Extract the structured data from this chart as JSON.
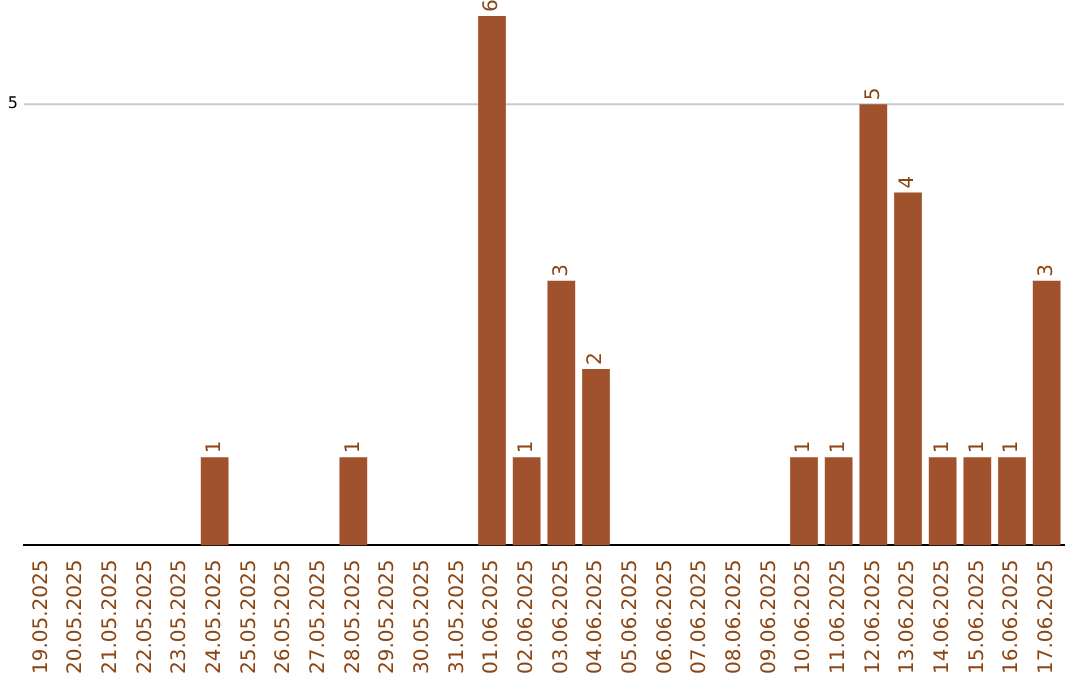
{
  "chart_data": {
    "type": "bar",
    "categories": [
      "19.05.2025",
      "20.05.2025",
      "21.05.2025",
      "22.05.2025",
      "23.05.2025",
      "24.05.2025",
      "25.05.2025",
      "26.05.2025",
      "27.05.2025",
      "28.05.2025",
      "29.05.2025",
      "30.05.2025",
      "31.05.2025",
      "01.06.2025",
      "02.06.2025",
      "03.06.2025",
      "04.06.2025",
      "05.06.2025",
      "06.06.2025",
      "07.06.2025",
      "08.06.2025",
      "09.06.2025",
      "10.06.2025",
      "11.06.2025",
      "12.06.2025",
      "13.06.2025",
      "14.06.2025",
      "15.06.2025",
      "16.06.2025",
      "17.06.2025"
    ],
    "values": [
      0,
      0,
      0,
      0,
      0,
      1,
      0,
      0,
      0,
      1,
      0,
      0,
      0,
      6,
      1,
      3,
      2,
      0,
      0,
      0,
      0,
      0,
      1,
      1,
      5,
      4,
      1,
      1,
      1,
      3
    ],
    "value_labels": [
      null,
      null,
      null,
      null,
      null,
      "1",
      null,
      null,
      null,
      "1",
      null,
      null,
      null,
      "6",
      "1",
      "3",
      "2",
      null,
      null,
      null,
      null,
      null,
      "1",
      "1",
      "5",
      "4",
      "1",
      "1",
      "1",
      "3"
    ],
    "color": "#a0522d",
    "ref_lines": [
      {
        "axis": "y",
        "value": 5,
        "label": "5",
        "color": "#cccccc"
      }
    ],
    "legend": false
  }
}
